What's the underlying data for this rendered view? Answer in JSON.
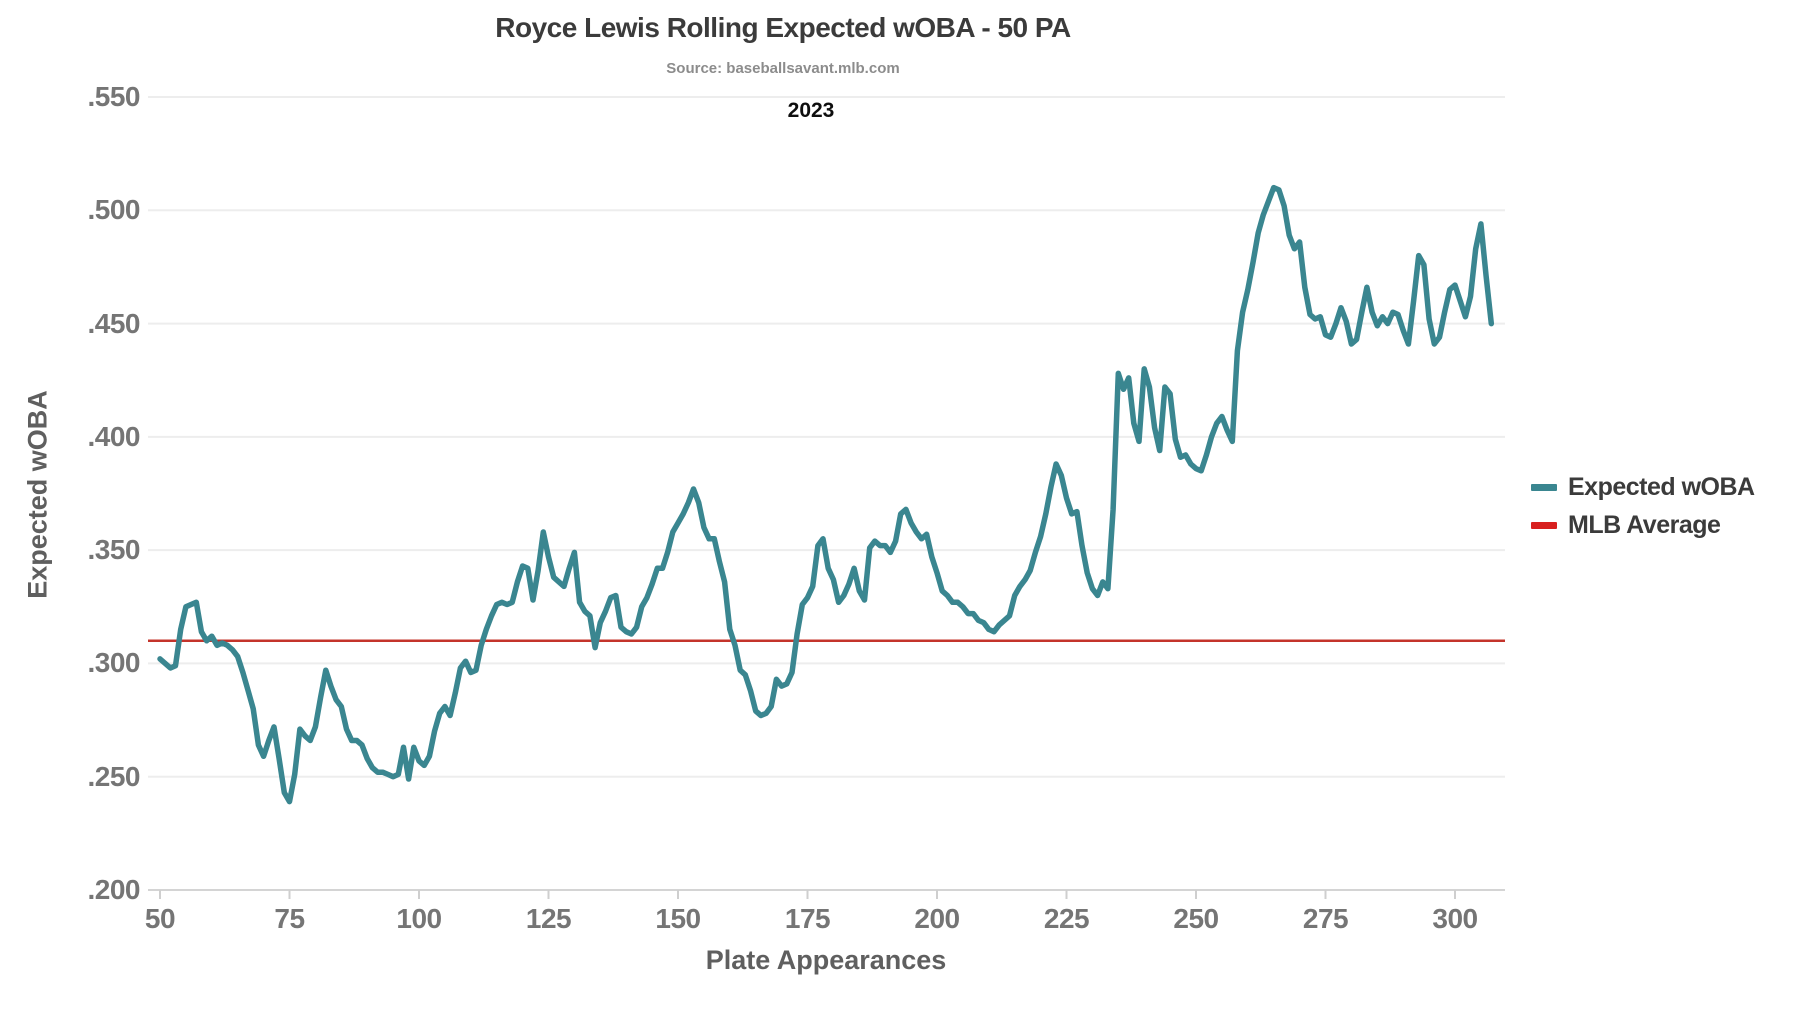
{
  "header": {
    "title": "Royce Lewis Rolling Expected wOBA - 50 PA",
    "source": "Source: baseballsavant.mlb.com",
    "season": "2023"
  },
  "axes": {
    "y_title": "Expected wOBA",
    "x_title": "Plate Appearances",
    "y_ticks": [
      {
        "label": ".550",
        "value": 0.55
      },
      {
        "label": ".500",
        "value": 0.5
      },
      {
        "label": ".450",
        "value": 0.45
      },
      {
        "label": ".400",
        "value": 0.4
      },
      {
        "label": ".350",
        "value": 0.35
      },
      {
        "label": ".300",
        "value": 0.3
      },
      {
        "label": ".250",
        "value": 0.25
      },
      {
        "label": ".200",
        "value": 0.2
      }
    ],
    "x_ticks": [
      {
        "label": "50",
        "value": 50
      },
      {
        "label": "75",
        "value": 75
      },
      {
        "label": "100",
        "value": 100
      },
      {
        "label": "125",
        "value": 125
      },
      {
        "label": "150",
        "value": 150
      },
      {
        "label": "175",
        "value": 175
      },
      {
        "label": "200",
        "value": 200
      },
      {
        "label": "225",
        "value": 225
      },
      {
        "label": "250",
        "value": 250
      },
      {
        "label": "275",
        "value": 275
      },
      {
        "label": "300",
        "value": 300
      }
    ]
  },
  "legend": {
    "items": [
      {
        "label": "Expected wOBA",
        "color": "#3a8690"
      },
      {
        "label": "MLB Average",
        "color": "#d8201f"
      }
    ]
  },
  "colors": {
    "line": "#3a8690",
    "average_line": "#c4342b",
    "gridline": "#ededed",
    "axis_line": "#d4d4d4",
    "tick_mark": "#cfcfcf",
    "background": "#ffffff"
  },
  "chart_data": {
    "type": "line",
    "title": "Royce Lewis Rolling Expected wOBA - 50 PA",
    "subtitle": "2023",
    "xlabel": "Plate Appearances",
    "ylabel": "Expected wOBA",
    "xlim": [
      47,
      310
    ],
    "ylim": [
      0.2,
      0.55
    ],
    "grid": "horizontal",
    "legend_position": "right",
    "series": [
      {
        "name": "Expected wOBA",
        "type": "line",
        "color": "#3a8690",
        "x_start": 50,
        "x_step": 1,
        "x_end": 307,
        "values": [
          0.302,
          0.3,
          0.298,
          0.299,
          0.315,
          0.325,
          0.326,
          0.327,
          0.314,
          0.31,
          0.312,
          0.308,
          0.309,
          0.308,
          0.306,
          0.303,
          0.296,
          0.288,
          0.28,
          0.264,
          0.259,
          0.266,
          0.272,
          0.258,
          0.243,
          0.239,
          0.251,
          0.271,
          0.268,
          0.266,
          0.272,
          0.285,
          0.297,
          0.29,
          0.284,
          0.281,
          0.271,
          0.266,
          0.266,
          0.264,
          0.258,
          0.254,
          0.252,
          0.252,
          0.251,
          0.25,
          0.251,
          0.263,
          0.249,
          0.263,
          0.257,
          0.255,
          0.259,
          0.27,
          0.278,
          0.281,
          0.277,
          0.287,
          0.298,
          0.301,
          0.296,
          0.297,
          0.308,
          0.315,
          0.321,
          0.326,
          0.327,
          0.326,
          0.327,
          0.336,
          0.343,
          0.342,
          0.328,
          0.341,
          0.358,
          0.347,
          0.338,
          0.336,
          0.334,
          0.342,
          0.349,
          0.327,
          0.323,
          0.321,
          0.307,
          0.318,
          0.323,
          0.329,
          0.33,
          0.316,
          0.314,
          0.313,
          0.316,
          0.325,
          0.329,
          0.335,
          0.342,
          0.342,
          0.349,
          0.358,
          0.362,
          0.366,
          0.371,
          0.377,
          0.371,
          0.36,
          0.355,
          0.355,
          0.345,
          0.336,
          0.315,
          0.308,
          0.297,
          0.295,
          0.288,
          0.279,
          0.277,
          0.278,
          0.281,
          0.293,
          0.29,
          0.291,
          0.296,
          0.313,
          0.326,
          0.329,
          0.334,
          0.352,
          0.355,
          0.342,
          0.337,
          0.327,
          0.33,
          0.335,
          0.342,
          0.332,
          0.328,
          0.351,
          0.354,
          0.352,
          0.352,
          0.349,
          0.354,
          0.366,
          0.368,
          0.362,
          0.358,
          0.355,
          0.357,
          0.347,
          0.34,
          0.332,
          0.33,
          0.327,
          0.327,
          0.325,
          0.322,
          0.322,
          0.319,
          0.318,
          0.315,
          0.314,
          0.317,
          0.319,
          0.321,
          0.33,
          0.334,
          0.337,
          0.341,
          0.349,
          0.356,
          0.366,
          0.378,
          0.388,
          0.383,
          0.373,
          0.366,
          0.367,
          0.352,
          0.34,
          0.333,
          0.33,
          0.336,
          0.333,
          0.368,
          0.428,
          0.421,
          0.426,
          0.406,
          0.398,
          0.43,
          0.422,
          0.404,
          0.394,
          0.422,
          0.419,
          0.399,
          0.391,
          0.392,
          0.388,
          0.386,
          0.385,
          0.392,
          0.4,
          0.406,
          0.409,
          0.403,
          0.398,
          0.438,
          0.455,
          0.465,
          0.477,
          0.49,
          0.498,
          0.504,
          0.51,
          0.509,
          0.502,
          0.489,
          0.483,
          0.486,
          0.466,
          0.454,
          0.452,
          0.453,
          0.445,
          0.444,
          0.45,
          0.457,
          0.451,
          0.441,
          0.443,
          0.455,
          0.466,
          0.455,
          0.449,
          0.453,
          0.45,
          0.455,
          0.454,
          0.447,
          0.441,
          0.46,
          0.48,
          0.476,
          0.452,
          0.441,
          0.444,
          0.455,
          0.465,
          0.467,
          0.46,
          0.453,
          0.462,
          0.483,
          0.494,
          0.471,
          0.45
        ]
      },
      {
        "name": "MLB Average",
        "type": "hline",
        "color": "#c4342b",
        "value": 0.31
      }
    ]
  }
}
